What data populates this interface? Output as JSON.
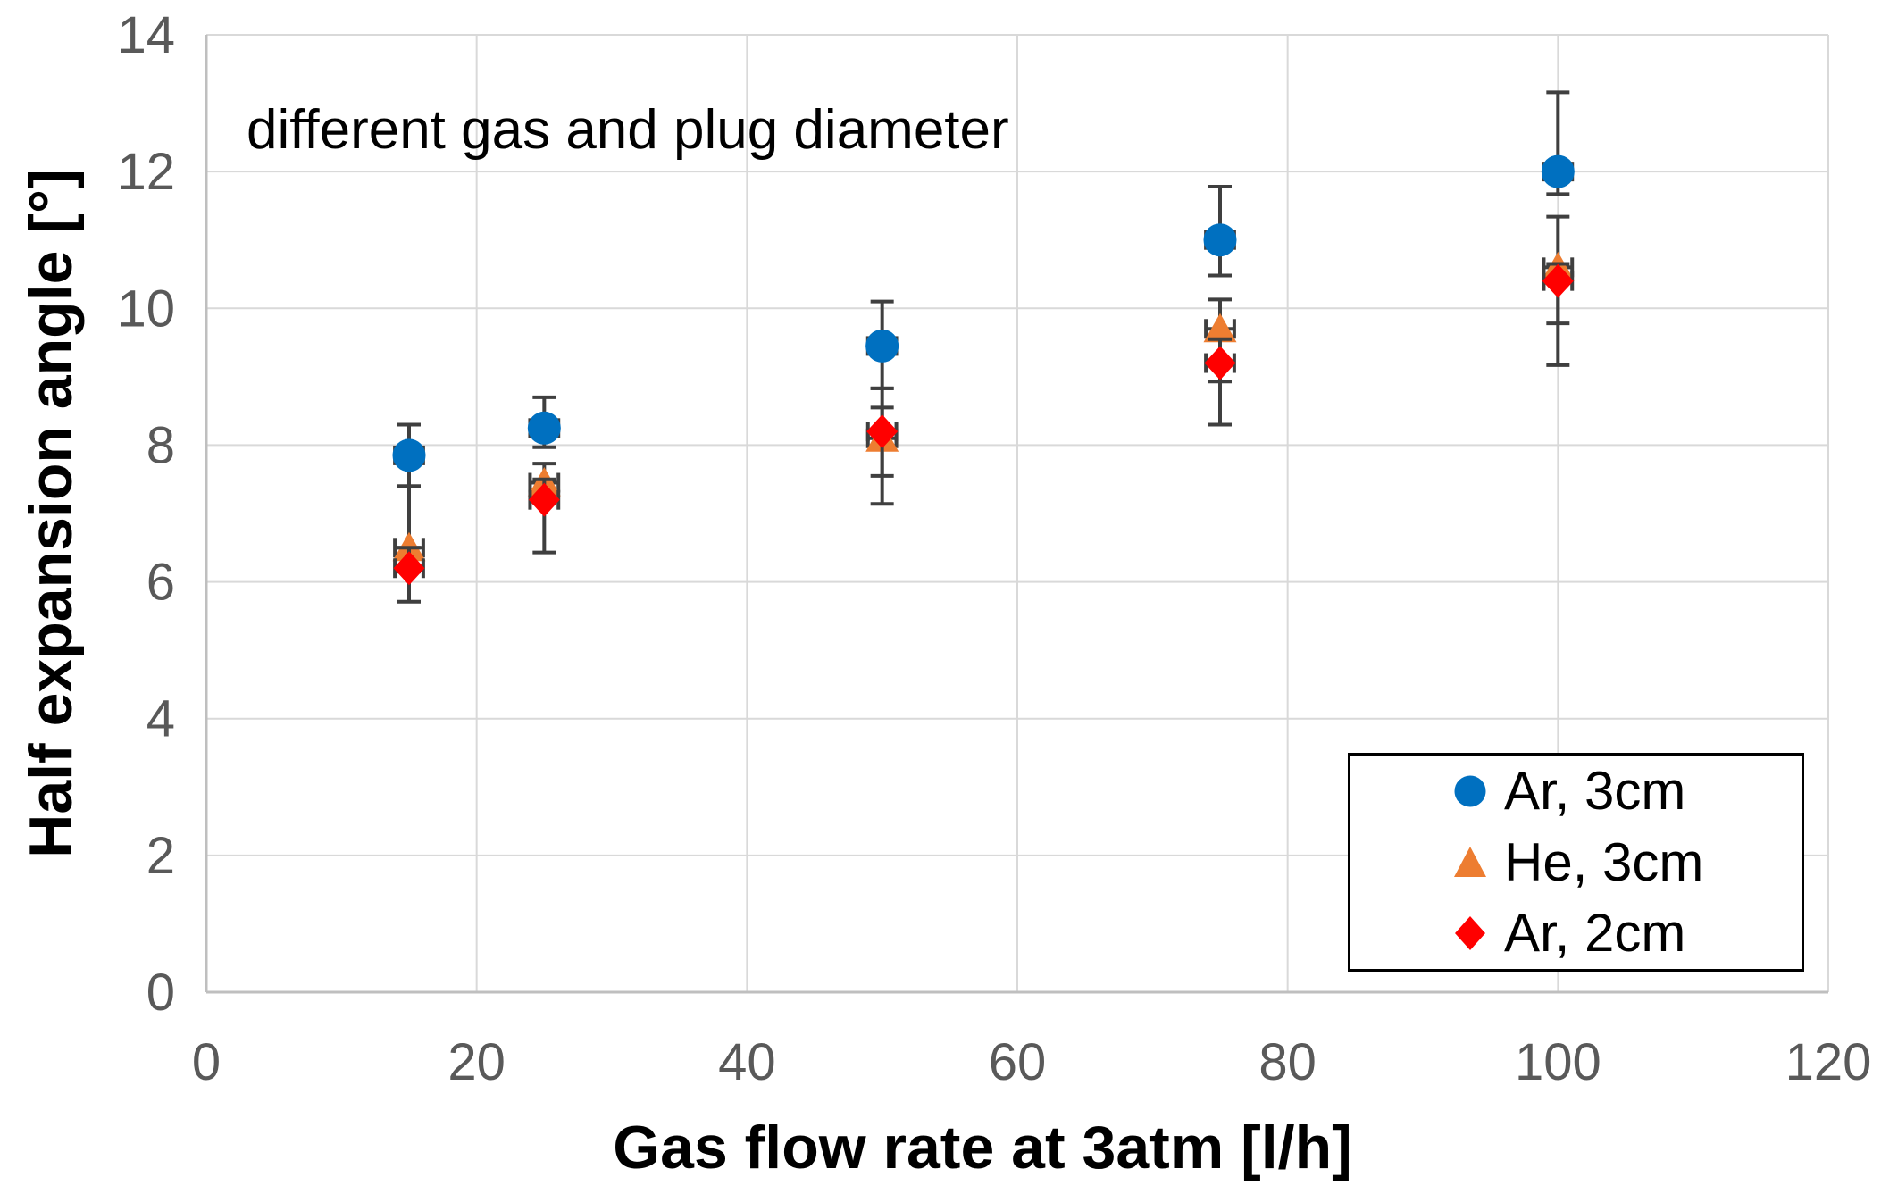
{
  "background": "#FFFFFF",
  "annotation": "different gas and plug diameter",
  "chart_data": {
    "type": "scatter",
    "title": "different gas and plug diameter",
    "xlabel": "Gas flow rate at 3atm [l/h]",
    "ylabel": "Half expansion angle [°]",
    "xlim": [
      0,
      120
    ],
    "ylim": [
      0,
      14
    ],
    "xticks": [
      0,
      20,
      40,
      60,
      80,
      100,
      120
    ],
    "yticks": [
      0,
      2,
      4,
      6,
      8,
      10,
      12,
      14
    ],
    "grid": true,
    "legend_position": "inside-bottom-right",
    "colors": {
      "gridline": "#D9D9D9",
      "axis_line": "#BFBFBF",
      "tick_label": "#595959",
      "error_bar": "#3F3F3F",
      "text": "#000000"
    },
    "series": [
      {
        "name": "Ar, 3cm",
        "marker": "circle",
        "color": "#0070C0",
        "points": [
          {
            "x": 15,
            "y": 7.85,
            "err_up": 0.45,
            "err_down": 0.45,
            "xerr": 1.05
          },
          {
            "x": 25,
            "y": 8.25,
            "err_up": 0.45,
            "err_down": 0.28,
            "xerr": 1.05
          },
          {
            "x": 50,
            "y": 9.45,
            "err_up": 0.65,
            "err_down": 0.62,
            "xerr": 1.05
          },
          {
            "x": 75,
            "y": 11.0,
            "err_up": 0.78,
            "err_down": 0.52,
            "xerr": 1.05
          },
          {
            "x": 100,
            "y": 12.0,
            "err_up": 1.16,
            "err_down": 0.33,
            "xerr": 1.05
          }
        ]
      },
      {
        "name": "He, 3cm",
        "marker": "triangle",
        "color": "#ED7D31",
        "points": [
          {
            "x": 15,
            "y": 6.5,
            "err_up": 0.9,
            "err_down": 0.35,
            "xerr": 1.05
          },
          {
            "x": 25,
            "y": 7.45,
            "err_up": 0.28,
            "err_down": 0.3,
            "xerr": 1.05
          },
          {
            "x": 50,
            "y": 8.1,
            "err_up": 0.73,
            "err_down": 0.55,
            "xerr": 1.05
          },
          {
            "x": 75,
            "y": 9.7,
            "err_up": 0.43,
            "err_down": 0.77,
            "xerr": 1.05
          },
          {
            "x": 100,
            "y": 10.6,
            "err_up": 0.74,
            "err_down": 0.82,
            "xerr": 1.05
          }
        ]
      },
      {
        "name": "Ar, 2cm",
        "marker": "diamond",
        "color": "#FF0000",
        "points": [
          {
            "x": 15,
            "y": 6.2,
            "err_up": 0.3,
            "err_down": 0.49,
            "xerr": 1.05
          },
          {
            "x": 25,
            "y": 7.2,
            "err_up": 0.3,
            "err_down": 0.77,
            "xerr": 1.05
          },
          {
            "x": 50,
            "y": 8.2,
            "err_up": 0.35,
            "err_down": 1.06,
            "xerr": 1.05
          },
          {
            "x": 75,
            "y": 9.2,
            "err_up": 0.35,
            "err_down": 0.9,
            "xerr": 1.05
          },
          {
            "x": 100,
            "y": 10.4,
            "err_up": 0.25,
            "err_down": 1.23,
            "xerr": 1.05
          }
        ]
      }
    ]
  }
}
